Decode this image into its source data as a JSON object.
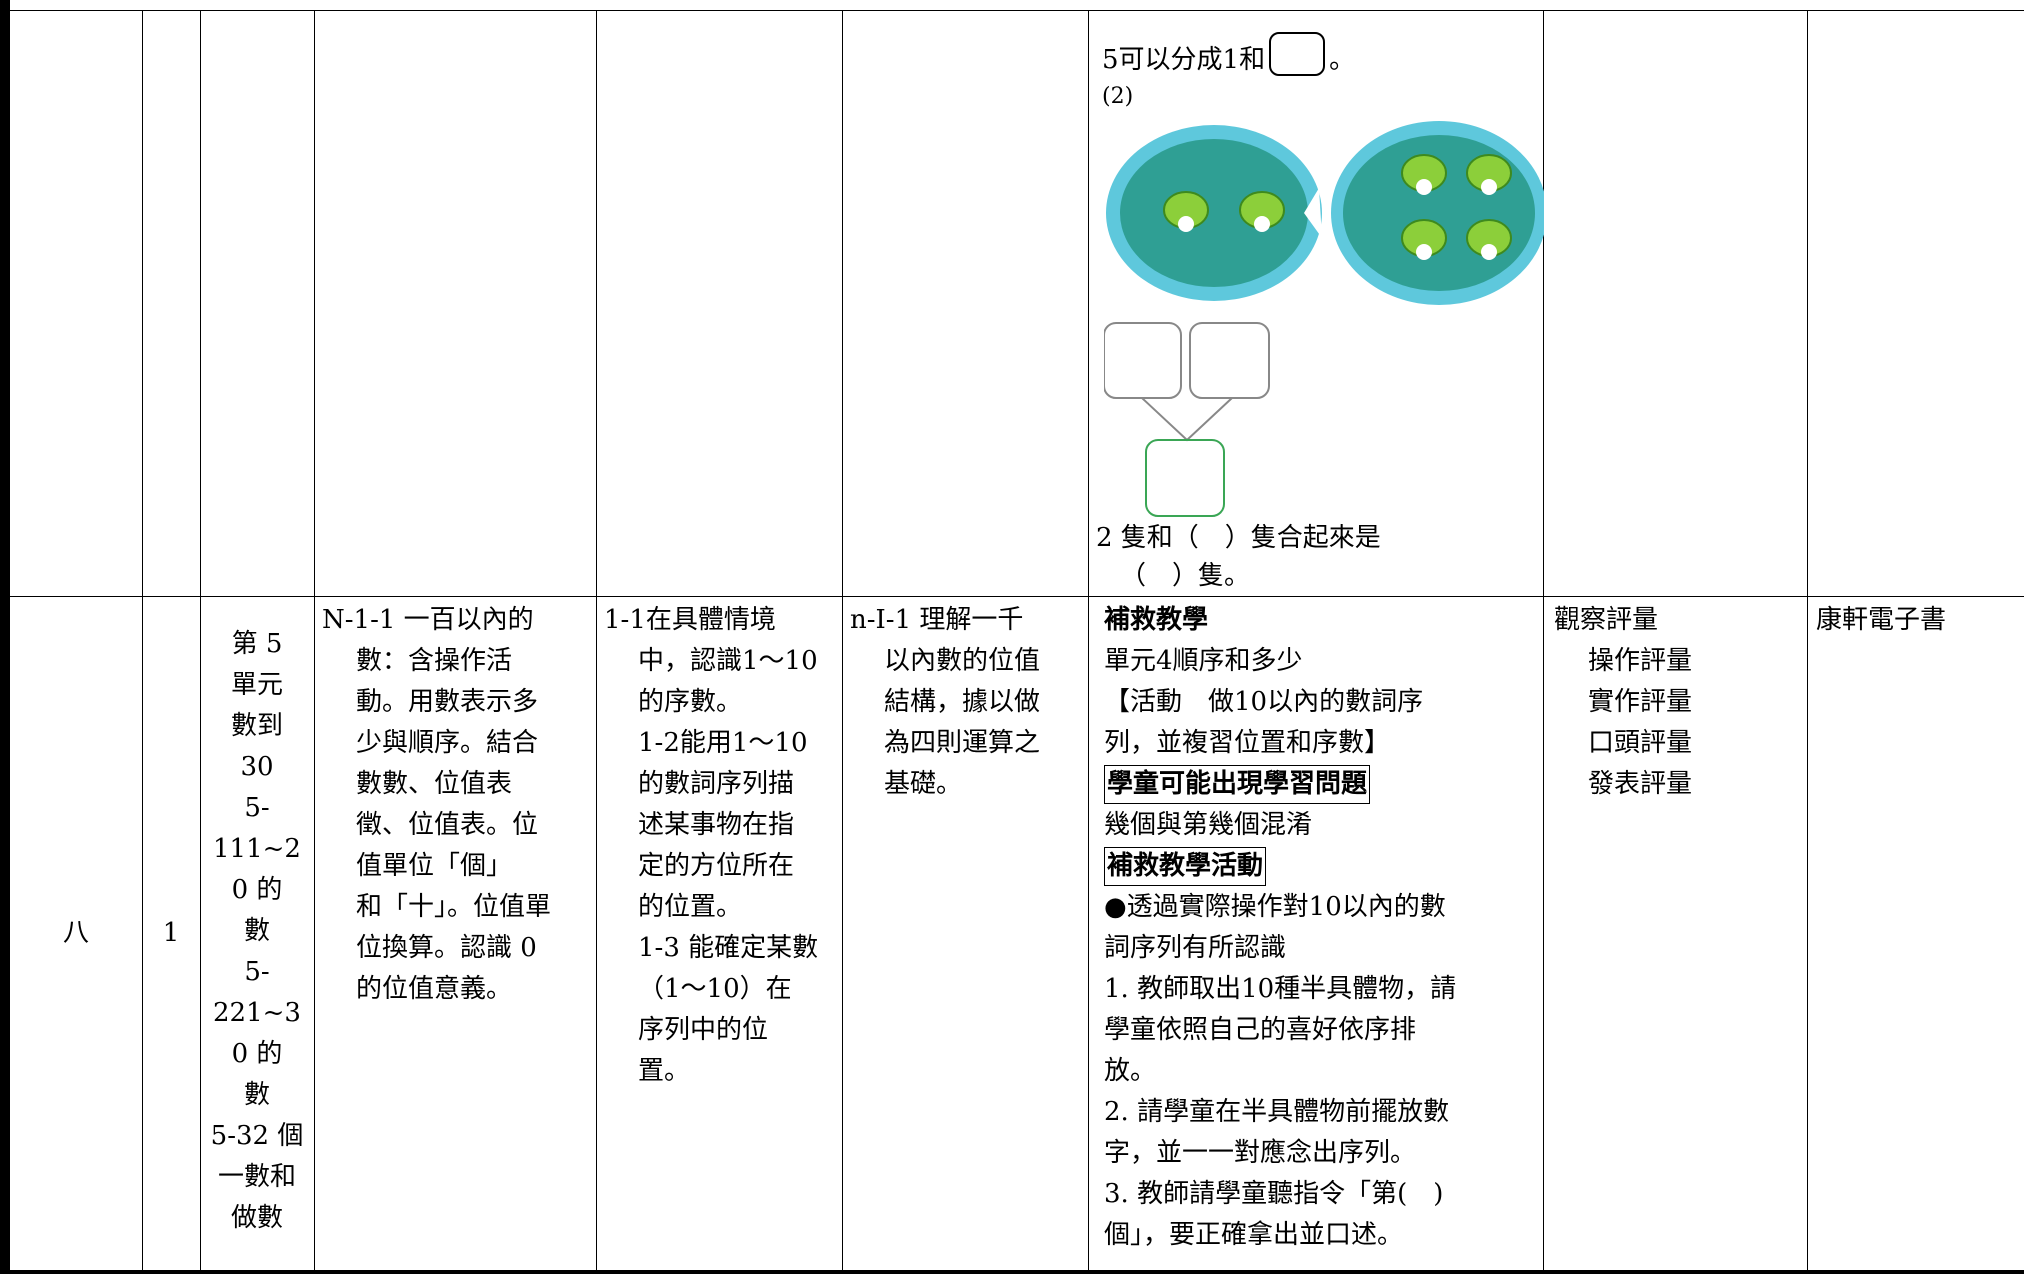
{
  "rows": [
    {
      "lesson": {
        "line1a": "5可以分成1和",
        "line1b": "。",
        "part": "(2)",
        "answer_line1": "2 隻和（　）隻合起來是",
        "answer_line2": "（　）隻。"
      }
    },
    {
      "week": "八",
      "periods": "1",
      "unit": [
        "第 5",
        "單元",
        "數到",
        "30",
        "5-",
        "111~2",
        "0 的",
        "數",
        "5-",
        "221~3",
        "0 的",
        "數",
        "5-32 個",
        "一數和",
        "做數"
      ],
      "content": [
        "N-1-1 一百以內的",
        "數：含操作活",
        "動。用數表示多",
        "少與順序。結合",
        "數數、位值表",
        "徵、位值表。位",
        "值單位「個」",
        "和「十」。位值單",
        "位換算。認識 0",
        "的位值意義。"
      ],
      "goals": [
        "1-1在具體情境",
        "中，認識1～10",
        "的序數。",
        "1-2能用1～10",
        "的數詞序列描",
        "述某事物在指",
        "定的方位所在",
        "的位置。",
        "1-3 能確定某數",
        "（1～10）在",
        "序列中的位",
        "置。"
      ],
      "indicators": [
        "n-I-1 理解一千",
        "以內數的位值",
        "結構，據以做",
        "為四則運算之",
        "基礎。"
      ],
      "lesson": [
        "補救教學",
        "單元4順序和多少",
        "【活動　做10以內的數詞序",
        "列，並複習位置和序數】",
        "學童可能出現學習問題",
        "幾個與第幾個混淆",
        "補救教學活動",
        "●透過實際操作對10以內的數",
        "詞序列有所認識",
        "1. 教師取出10種半具體物，請",
        "學童依照自己的喜好依序排",
        "放。",
        "2. 請學童在半具體物前擺放數",
        "字，並一一對應念出序列。",
        "3. 教師請學童聽指令「第(　)",
        "個」，要正確拿出並口述。"
      ],
      "assessment": [
        "觀察評量",
        "操作評量",
        "實作評量",
        "口頭評量",
        "發表評量"
      ],
      "resources": "康軒電子書"
    }
  ]
}
